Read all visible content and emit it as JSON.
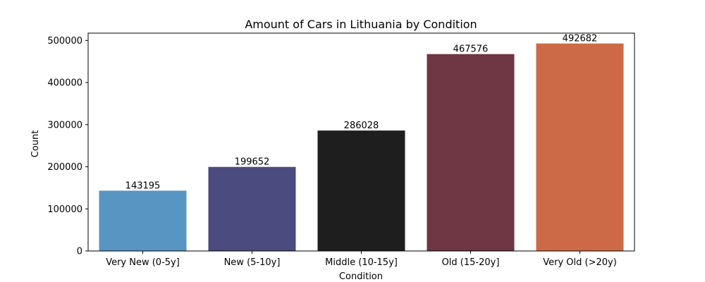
{
  "chart_data": {
    "type": "bar",
    "title": "Amount of Cars in Lithuania by Condition",
    "xlabel": "Condition",
    "ylabel": "Count",
    "categories": [
      "Very New (0-5y]",
      "New (5-10y]",
      "Middle (10-15y]",
      "Old (15-20y]",
      "Very Old (>20y)"
    ],
    "values": [
      143195,
      199652,
      286028,
      467576,
      492682
    ],
    "colors": [
      "#5995c2",
      "#4b4b7f",
      "#1e1e1e",
      "#6f3643",
      "#cc6a48"
    ],
    "ylim": [
      0,
      517316
    ],
    "yticks": [
      0,
      100000,
      200000,
      300000,
      400000,
      500000
    ],
    "grid": false,
    "legend": "none"
  }
}
